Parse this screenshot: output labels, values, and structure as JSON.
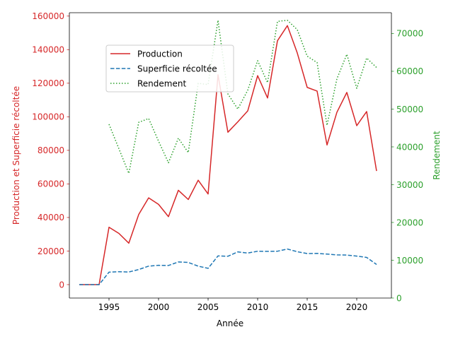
{
  "chart_data": {
    "type": "line",
    "title": "",
    "xlabel": "Année",
    "ylabel_left": "Production et Superficie récoltée",
    "ylabel_right": "Rendement",
    "xlim": [
      1991,
      2023.5
    ],
    "ylim_left": [
      -8000,
      162000
    ],
    "ylim_right": [
      0,
      75500
    ],
    "x_ticks": [
      1995,
      2000,
      2005,
      2010,
      2015,
      2020
    ],
    "y_ticks_left": [
      0,
      20000,
      40000,
      60000,
      80000,
      100000,
      120000,
      140000,
      160000
    ],
    "y_ticks_right": [
      0,
      10000,
      20000,
      30000,
      40000,
      50000,
      60000,
      70000
    ],
    "colors": {
      "left_axis": "#d62728",
      "right_axis": "#2ca02c"
    },
    "legend_position": "upper-left",
    "grid": false,
    "series": [
      {
        "name": "Production",
        "axis": "left",
        "color": "#d62728",
        "style": "solid",
        "x": [
          1992,
          1993,
          1994,
          1995,
          1996,
          1997,
          1998,
          1999,
          2000,
          2001,
          2002,
          2003,
          2004,
          2005,
          2006,
          2007,
          2008,
          2009,
          2010,
          2011,
          2012,
          2013,
          2014,
          2015,
          2016,
          2017,
          2018,
          2019,
          2020,
          2021,
          2022
        ],
        "values": [
          0,
          0,
          0,
          34200,
          30500,
          24700,
          41800,
          51700,
          47800,
          40500,
          56200,
          50700,
          62200,
          54000,
          125000,
          90800,
          97000,
          103500,
          124500,
          111200,
          145300,
          154300,
          138000,
          117500,
          115300,
          83200,
          102700,
          114500,
          94700,
          103100,
          67700
        ]
      },
      {
        "name": "Superficie récoltée",
        "axis": "left",
        "color": "#1f77b4",
        "style": "dashed",
        "x": [
          1992,
          1993,
          1994,
          1995,
          1996,
          1997,
          1998,
          1999,
          2000,
          2001,
          2002,
          2003,
          2004,
          2005,
          2006,
          2007,
          2008,
          2009,
          2010,
          2011,
          2012,
          2013,
          2014,
          2015,
          2016,
          2017,
          2018,
          2019,
          2020,
          2021,
          2022
        ],
        "values": [
          0,
          0,
          0,
          7400,
          7700,
          7500,
          9000,
          11000,
          11500,
          11400,
          13500,
          13200,
          11000,
          9700,
          17100,
          16900,
          19500,
          18800,
          19900,
          19800,
          19900,
          21200,
          19600,
          18500,
          18600,
          18200,
          17700,
          17600,
          17000,
          16200,
          12000
        ]
      },
      {
        "name": "Rendement",
        "axis": "right",
        "color": "#2ca02c",
        "style": "dotted",
        "x": [
          1995,
          1996,
          1997,
          1998,
          1999,
          2000,
          2001,
          2002,
          2003,
          2004,
          2005,
          2006,
          2007,
          2008,
          2009,
          2010,
          2011,
          2012,
          2013,
          2014,
          2015,
          2016,
          2017,
          2018,
          2019,
          2020,
          2021,
          2022
        ],
        "values": [
          46000,
          39500,
          33000,
          46500,
          47500,
          41500,
          35800,
          42300,
          38500,
          56800,
          56500,
          73500,
          54000,
          50000,
          55000,
          62800,
          57000,
          73200,
          73500,
          71000,
          64000,
          62300,
          45700,
          58000,
          64500,
          55500,
          63500,
          61000
        ]
      }
    ]
  }
}
